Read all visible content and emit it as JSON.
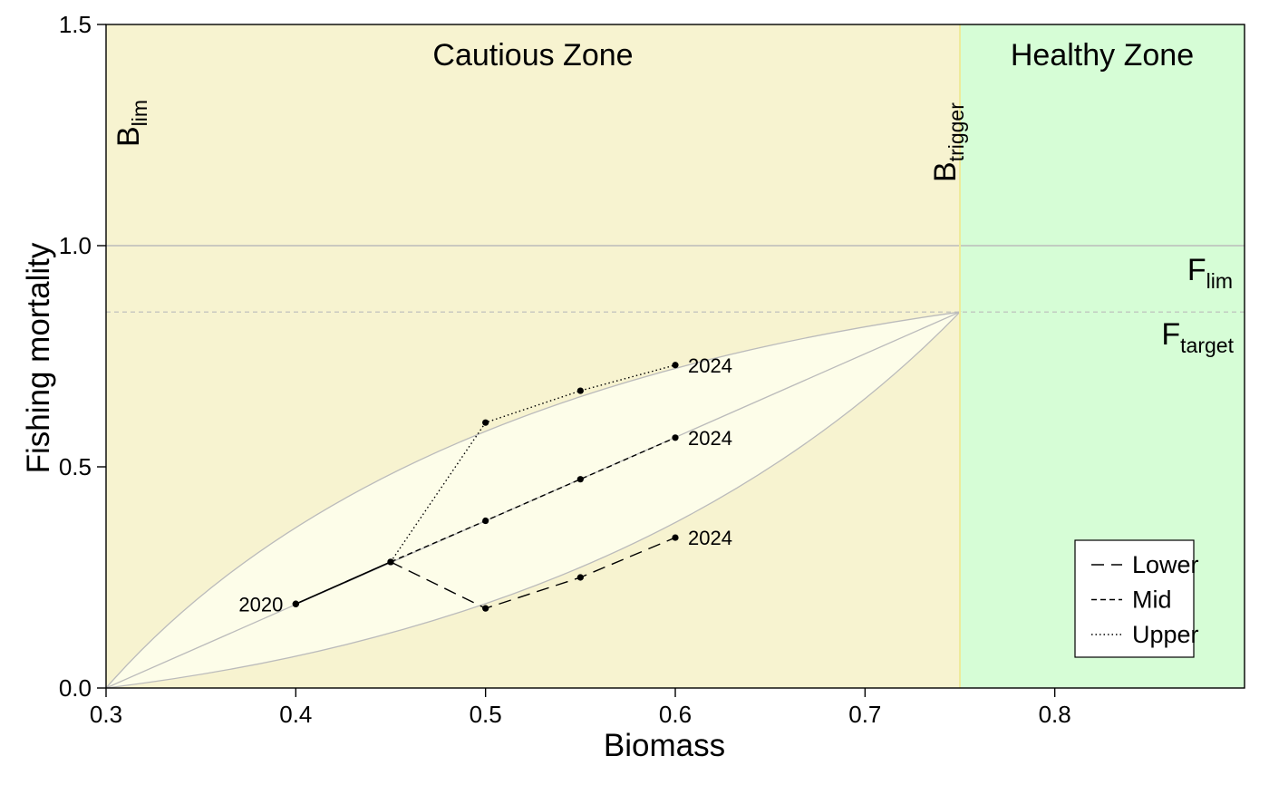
{
  "chart_data": {
    "type": "line",
    "xlabel": "Biomass",
    "ylabel": "Fishing mortality",
    "xlim": [
      0.3,
      0.9
    ],
    "ylim": [
      0.0,
      1.5
    ],
    "x_ticks": [
      "0.3",
      "0.4",
      "0.5",
      "0.6",
      "0.7",
      "0.8"
    ],
    "y_ticks": [
      "0.0",
      "0.5",
      "1.0",
      "1.5"
    ],
    "grid": false,
    "legend_position": "bottom-right",
    "zones": [
      {
        "label": "Cautious Zone",
        "x_from": 0.3,
        "x_to": 0.75,
        "color": "#f7f3d0"
      },
      {
        "label": "Healthy Zone",
        "x_from": 0.75,
        "x_to": 0.9,
        "color": "#d6fdd6"
      }
    ],
    "reference_points": {
      "blim": {
        "label": "B",
        "sub": "lim",
        "x": 0.3
      },
      "btrigger": {
        "label": "B",
        "sub": "trigger",
        "x": 0.75
      },
      "flim": {
        "label": "F",
        "sub": "lim",
        "y": 1.0
      },
      "ftarget": {
        "label": "F",
        "sub": "target",
        "y": 0.85
      }
    },
    "hcr_envelope": {
      "origin": [
        0.3,
        0.0
      ],
      "apex": [
        0.75,
        0.85
      ],
      "fill": "#fdfde9",
      "line_color": "#bbbbbb"
    },
    "series": [
      {
        "name": "Lower",
        "dash": "long",
        "points": [
          [
            0.4,
            0.19
          ],
          [
            0.45,
            0.285
          ],
          [
            0.5,
            0.18
          ],
          [
            0.55,
            0.25
          ],
          [
            0.6,
            0.34
          ]
        ]
      },
      {
        "name": "Mid",
        "dash": "short",
        "points": [
          [
            0.4,
            0.19
          ],
          [
            0.45,
            0.285
          ],
          [
            0.5,
            0.378
          ],
          [
            0.55,
            0.472
          ],
          [
            0.6,
            0.566
          ]
        ]
      },
      {
        "name": "Upper",
        "dash": "dotted",
        "points": [
          [
            0.4,
            0.19
          ],
          [
            0.45,
            0.285
          ],
          [
            0.5,
            0.6
          ],
          [
            0.55,
            0.672
          ],
          [
            0.6,
            0.73
          ]
        ]
      }
    ],
    "annotations": [
      {
        "text": "2020",
        "x": 0.4,
        "y": 0.19,
        "anchor": "end"
      },
      {
        "text": "2024",
        "x": 0.6,
        "y": 0.73,
        "anchor": "start"
      },
      {
        "text": "2024",
        "x": 0.6,
        "y": 0.566,
        "anchor": "start"
      },
      {
        "text": "2024",
        "x": 0.6,
        "y": 0.34,
        "anchor": "start"
      }
    ]
  }
}
